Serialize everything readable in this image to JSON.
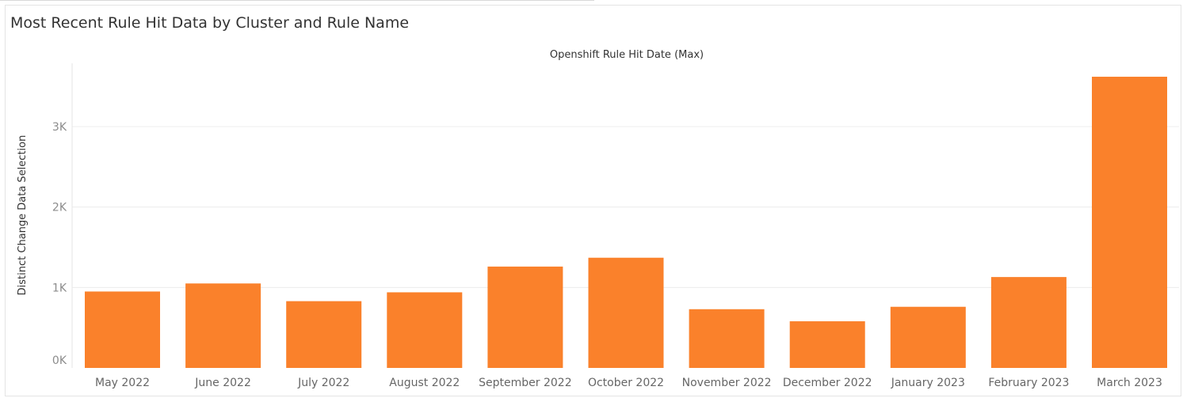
{
  "title": "Most Recent Rule Hit Data by Cluster and Rule Name",
  "chart_data": {
    "type": "bar",
    "column_header": "Openshift Rule Hit Date (Max)",
    "xlabel": "",
    "ylabel": "Distinct Change Data Selection",
    "categories": [
      "May 2022",
      "June 2022",
      "July 2022",
      "August 2022",
      "September 2022",
      "October 2022",
      "November 2022",
      "December 2022",
      "January 2023",
      "February 2023",
      "March 2023"
    ],
    "values": [
      950,
      1050,
      830,
      940,
      1260,
      1370,
      730,
      580,
      760,
      1130,
      3620
    ],
    "ylim": [
      0,
      3800
    ],
    "yticks": [
      0,
      1000,
      2000,
      3000
    ],
    "ytick_labels": [
      "0K",
      "1K",
      "2K",
      "3K"
    ],
    "grid": true,
    "bar_color": "#fa812b"
  }
}
